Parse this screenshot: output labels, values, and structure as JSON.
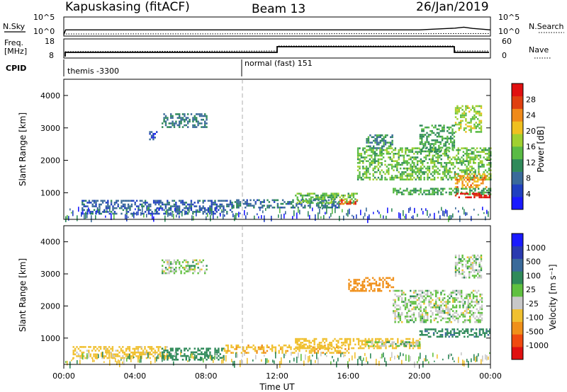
{
  "header": {
    "station": "Kapuskasing (fitACF)",
    "beam": "Beam 13",
    "date": "26/Jan/2019"
  },
  "colors": {
    "power_scale": [
      "#1a1aff",
      "#2040c0",
      "#3a6a9a",
      "#2f8a5a",
      "#5abb45",
      "#a0d030",
      "#f0c020",
      "#f08a1a",
      "#e04010",
      "#e01010"
    ],
    "velocity_scale": [
      "#e01010",
      "#f04a10",
      "#f0901a",
      "#f0c030",
      "#c8c8c8",
      "#60c040",
      "#2f8a5a",
      "#3a6a9a",
      "#2a3ab0",
      "#1a1aff"
    ]
  },
  "panels": {
    "nsky": {
      "left_label": "N.Sky",
      "left_ticks": [
        "10^5",
        "10^0"
      ],
      "right_label": "N.Search",
      "right_ticks": [
        "10^5",
        "10^0"
      ]
    },
    "freq": {
      "left_label_1": "Freq.",
      "left_label_2": "[MHz]",
      "left_ticks": [
        "18",
        "8"
      ],
      "right_label": "Nave",
      "right_ticks": [
        "60",
        "0"
      ]
    },
    "cpid": {
      "label": "CPID",
      "segments": [
        {
          "name": "themis -3300"
        },
        {
          "name": "normal (fast) 151"
        }
      ]
    },
    "power": {
      "ylabel": "Slant Range [km]",
      "cbar_label": "Power [dB]",
      "cbar_ticks": [
        "28",
        "24",
        "20",
        "16",
        "12",
        "8",
        "4"
      ]
    },
    "velocity": {
      "ylabel": "Slant Range [km]",
      "cbar_label": "Velocity [m s⁻¹]",
      "cbar_ticks": [
        "1000",
        "500",
        "100",
        "25",
        "-25",
        "-100",
        "-500",
        "-1000"
      ]
    }
  },
  "xaxis": {
    "label": "Time UT",
    "ticks": [
      "00:00",
      "04:00",
      "08:00",
      "12:00",
      "16:00",
      "20:00",
      "00:00"
    ]
  },
  "chart_data": [
    {
      "type": "line",
      "name": "N.Sky / N.Search",
      "x_unit": "hours UT",
      "y_scale": "log",
      "ylim": [
        1,
        100000
      ],
      "x": [
        0,
        0.1,
        1,
        2,
        4,
        6,
        8,
        10,
        12,
        14,
        16,
        18,
        20,
        22,
        22.5,
        23,
        24
      ],
      "values": [
        1,
        30,
        30,
        30,
        30,
        30,
        30,
        30,
        30,
        30,
        30,
        30,
        30,
        100,
        200,
        80,
        30
      ]
    },
    {
      "type": "line",
      "name": "Freq.",
      "x_unit": "hours UT",
      "ylim": [
        8,
        18
      ],
      "x": [
        0,
        0.05,
        12,
        12.01,
        22,
        22.01,
        24
      ],
      "values": [
        8,
        10.5,
        10.5,
        12.5,
        12.5,
        10.5,
        10.5
      ]
    },
    {
      "type": "heatmap",
      "name": "Power [dB]",
      "x_unit": "hours UT",
      "y_unit": "km",
      "xlim": [
        0,
        24
      ],
      "ylim": [
        180,
        4500
      ],
      "zlim": [
        0,
        30
      ],
      "regions": [
        {
          "t0": 1.0,
          "t1": 9.5,
          "r0": 380,
          "r1": 780,
          "z": 7
        },
        {
          "t0": 5.5,
          "t1": 8.0,
          "r0": 3000,
          "r1": 3450,
          "z": 9
        },
        {
          "t0": 4.8,
          "t1": 5.2,
          "r0": 2650,
          "r1": 2900,
          "z": 5
        },
        {
          "t0": 9.5,
          "t1": 15.5,
          "r0": 550,
          "r1": 800,
          "z": 8
        },
        {
          "t0": 13.0,
          "t1": 16.5,
          "r0": 700,
          "r1": 1000,
          "z": 14
        },
        {
          "t0": 15.5,
          "t1": 16.5,
          "r0": 650,
          "r1": 800,
          "z": 26
        },
        {
          "t0": 18.5,
          "t1": 24.0,
          "r0": 950,
          "r1": 1150,
          "z": 12
        },
        {
          "t0": 22.0,
          "t1": 24.0,
          "r0": 880,
          "r1": 1000,
          "z": 29
        },
        {
          "t0": 16.5,
          "t1": 24.0,
          "r0": 1400,
          "r1": 2400,
          "z": 14
        },
        {
          "t0": 22.0,
          "t1": 23.8,
          "r0": 1200,
          "r1": 1600,
          "z": 22
        },
        {
          "t0": 17.0,
          "t1": 18.5,
          "r0": 2400,
          "r1": 2800,
          "z": 10
        },
        {
          "t0": 20.0,
          "t1": 22.0,
          "r0": 2300,
          "r1": 3100,
          "z": 12
        },
        {
          "t0": 22.0,
          "t1": 23.5,
          "r0": 2900,
          "r1": 3700,
          "z": 16
        }
      ]
    },
    {
      "type": "heatmap",
      "name": "Velocity [m s-1]",
      "x_unit": "hours UT",
      "y_unit": "km",
      "xlim": [
        0,
        24
      ],
      "ylim": [
        180,
        4500
      ],
      "zlim": [
        -1000,
        1000
      ],
      "regions": [
        {
          "t0": 0.5,
          "t1": 6.0,
          "r0": 350,
          "r1": 750,
          "z": -50
        },
        {
          "t0": 5.5,
          "t1": 9.0,
          "r0": 300,
          "r1": 700,
          "z": 60
        },
        {
          "t0": 5.5,
          "t1": 8.0,
          "r0": 3000,
          "r1": 3450,
          "z": 0
        },
        {
          "t0": 9.0,
          "t1": 16.0,
          "r0": 550,
          "r1": 800,
          "z": -80
        },
        {
          "t0": 13.0,
          "t1": 20.0,
          "r0": 700,
          "r1": 1000,
          "z": -70
        },
        {
          "t0": 17.0,
          "t1": 20.0,
          "r0": 750,
          "r1": 900,
          "z": 10
        },
        {
          "t0": 16.0,
          "t1": 18.5,
          "r0": 2450,
          "r1": 2900,
          "z": -300
        },
        {
          "t0": 18.5,
          "t1": 23.5,
          "r0": 1500,
          "r1": 2500,
          "z": 0
        },
        {
          "t0": 20.0,
          "t1": 24.0,
          "r0": 1050,
          "r1": 1300,
          "z": 80
        },
        {
          "t0": 22.0,
          "t1": 23.5,
          "r0": 2900,
          "r1": 3600,
          "z": 0
        }
      ]
    }
  ]
}
